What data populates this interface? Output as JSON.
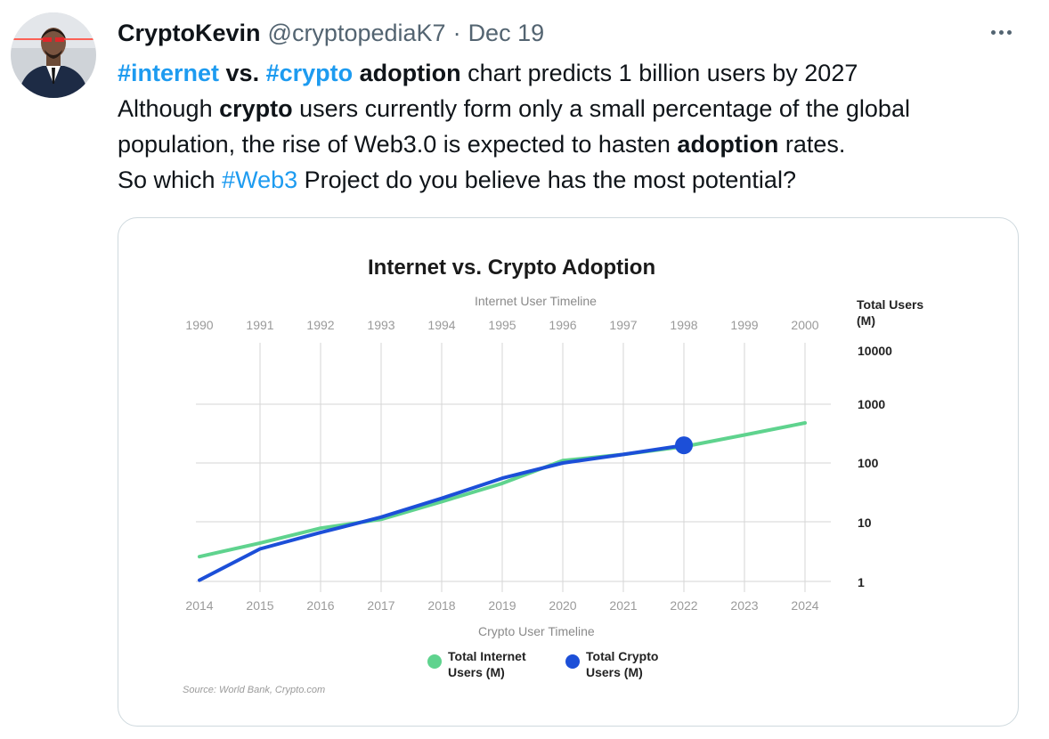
{
  "tweet": {
    "author_name": "CryptoKevin",
    "handle": "@cryptopediaK7",
    "separator": "·",
    "date": "Dec 19",
    "more_icon": "more-horizontal-icon",
    "text": {
      "line1": {
        "h1": "#internet",
        "t1": " vs. ",
        "h2": "#crypto",
        "t2": " adoption",
        "t3": " chart predicts 1 billion users by 2027"
      },
      "line2": {
        "t1": "Although ",
        "t2": "crypto",
        "t3": " users currently form only a small percentage of the global"
      },
      "line3": {
        "t1": "population, the rise of Web3.0 is expected to hasten ",
        "t2": "adoption",
        "t3": " rates."
      },
      "line4": {
        "t1": "So which ",
        "h1": "#Web3",
        "t2": " Project do you believe has the most potential?"
      }
    }
  },
  "colors": {
    "hashtag": "#1d9bf0",
    "internet_series": "#5fd38e",
    "crypto_series": "#1c4fd8",
    "grid": "#d6d6d6"
  },
  "chart_data": {
    "type": "line",
    "title": "Internet vs. Crypto Adoption",
    "top_axis_label": "Internet User Timeline",
    "bottom_axis_label": "Crypto User Timeline",
    "top_ticks": [
      "1990",
      "1991",
      "1992",
      "1993",
      "1994",
      "1995",
      "1996",
      "1997",
      "1998",
      "1999",
      "2000"
    ],
    "bottom_ticks": [
      "2014",
      "2015",
      "2016",
      "2017",
      "2018",
      "2019",
      "2020",
      "2021",
      "2022",
      "2023",
      "2024"
    ],
    "ylabel_line1": "Total Users",
    "ylabel_line2": "(M)",
    "y_scale": "log",
    "yticks": [
      1,
      10,
      100,
      1000,
      10000
    ],
    "ylim": [
      1,
      10000
    ],
    "grid": true,
    "legend_position": "bottom-center",
    "source": "Source: World Bank, Crypto.com",
    "series": [
      {
        "name_line1": "Total Internet",
        "name_line2": "Users (M)",
        "color": "#5fd38e",
        "points": [
          [
            0,
            2.6
          ],
          [
            1,
            4.4
          ],
          [
            2,
            7.8
          ],
          [
            3,
            11
          ],
          [
            4,
            22
          ],
          [
            5,
            45
          ],
          [
            6,
            110
          ],
          [
            7,
            140
          ],
          [
            8,
            190
          ],
          [
            9,
            300
          ],
          [
            10,
            480
          ]
        ]
      },
      {
        "name_line1": "Total Crypto",
        "name_line2": "Users (M)",
        "color": "#1c4fd8",
        "points": [
          [
            0,
            1.05
          ],
          [
            1,
            3.5
          ],
          [
            2,
            6.6
          ],
          [
            3,
            12
          ],
          [
            4,
            25
          ],
          [
            5,
            55
          ],
          [
            6,
            100
          ],
          [
            7,
            140
          ],
          [
            8,
            200
          ]
        ],
        "endpoint_marker": true
      }
    ]
  }
}
